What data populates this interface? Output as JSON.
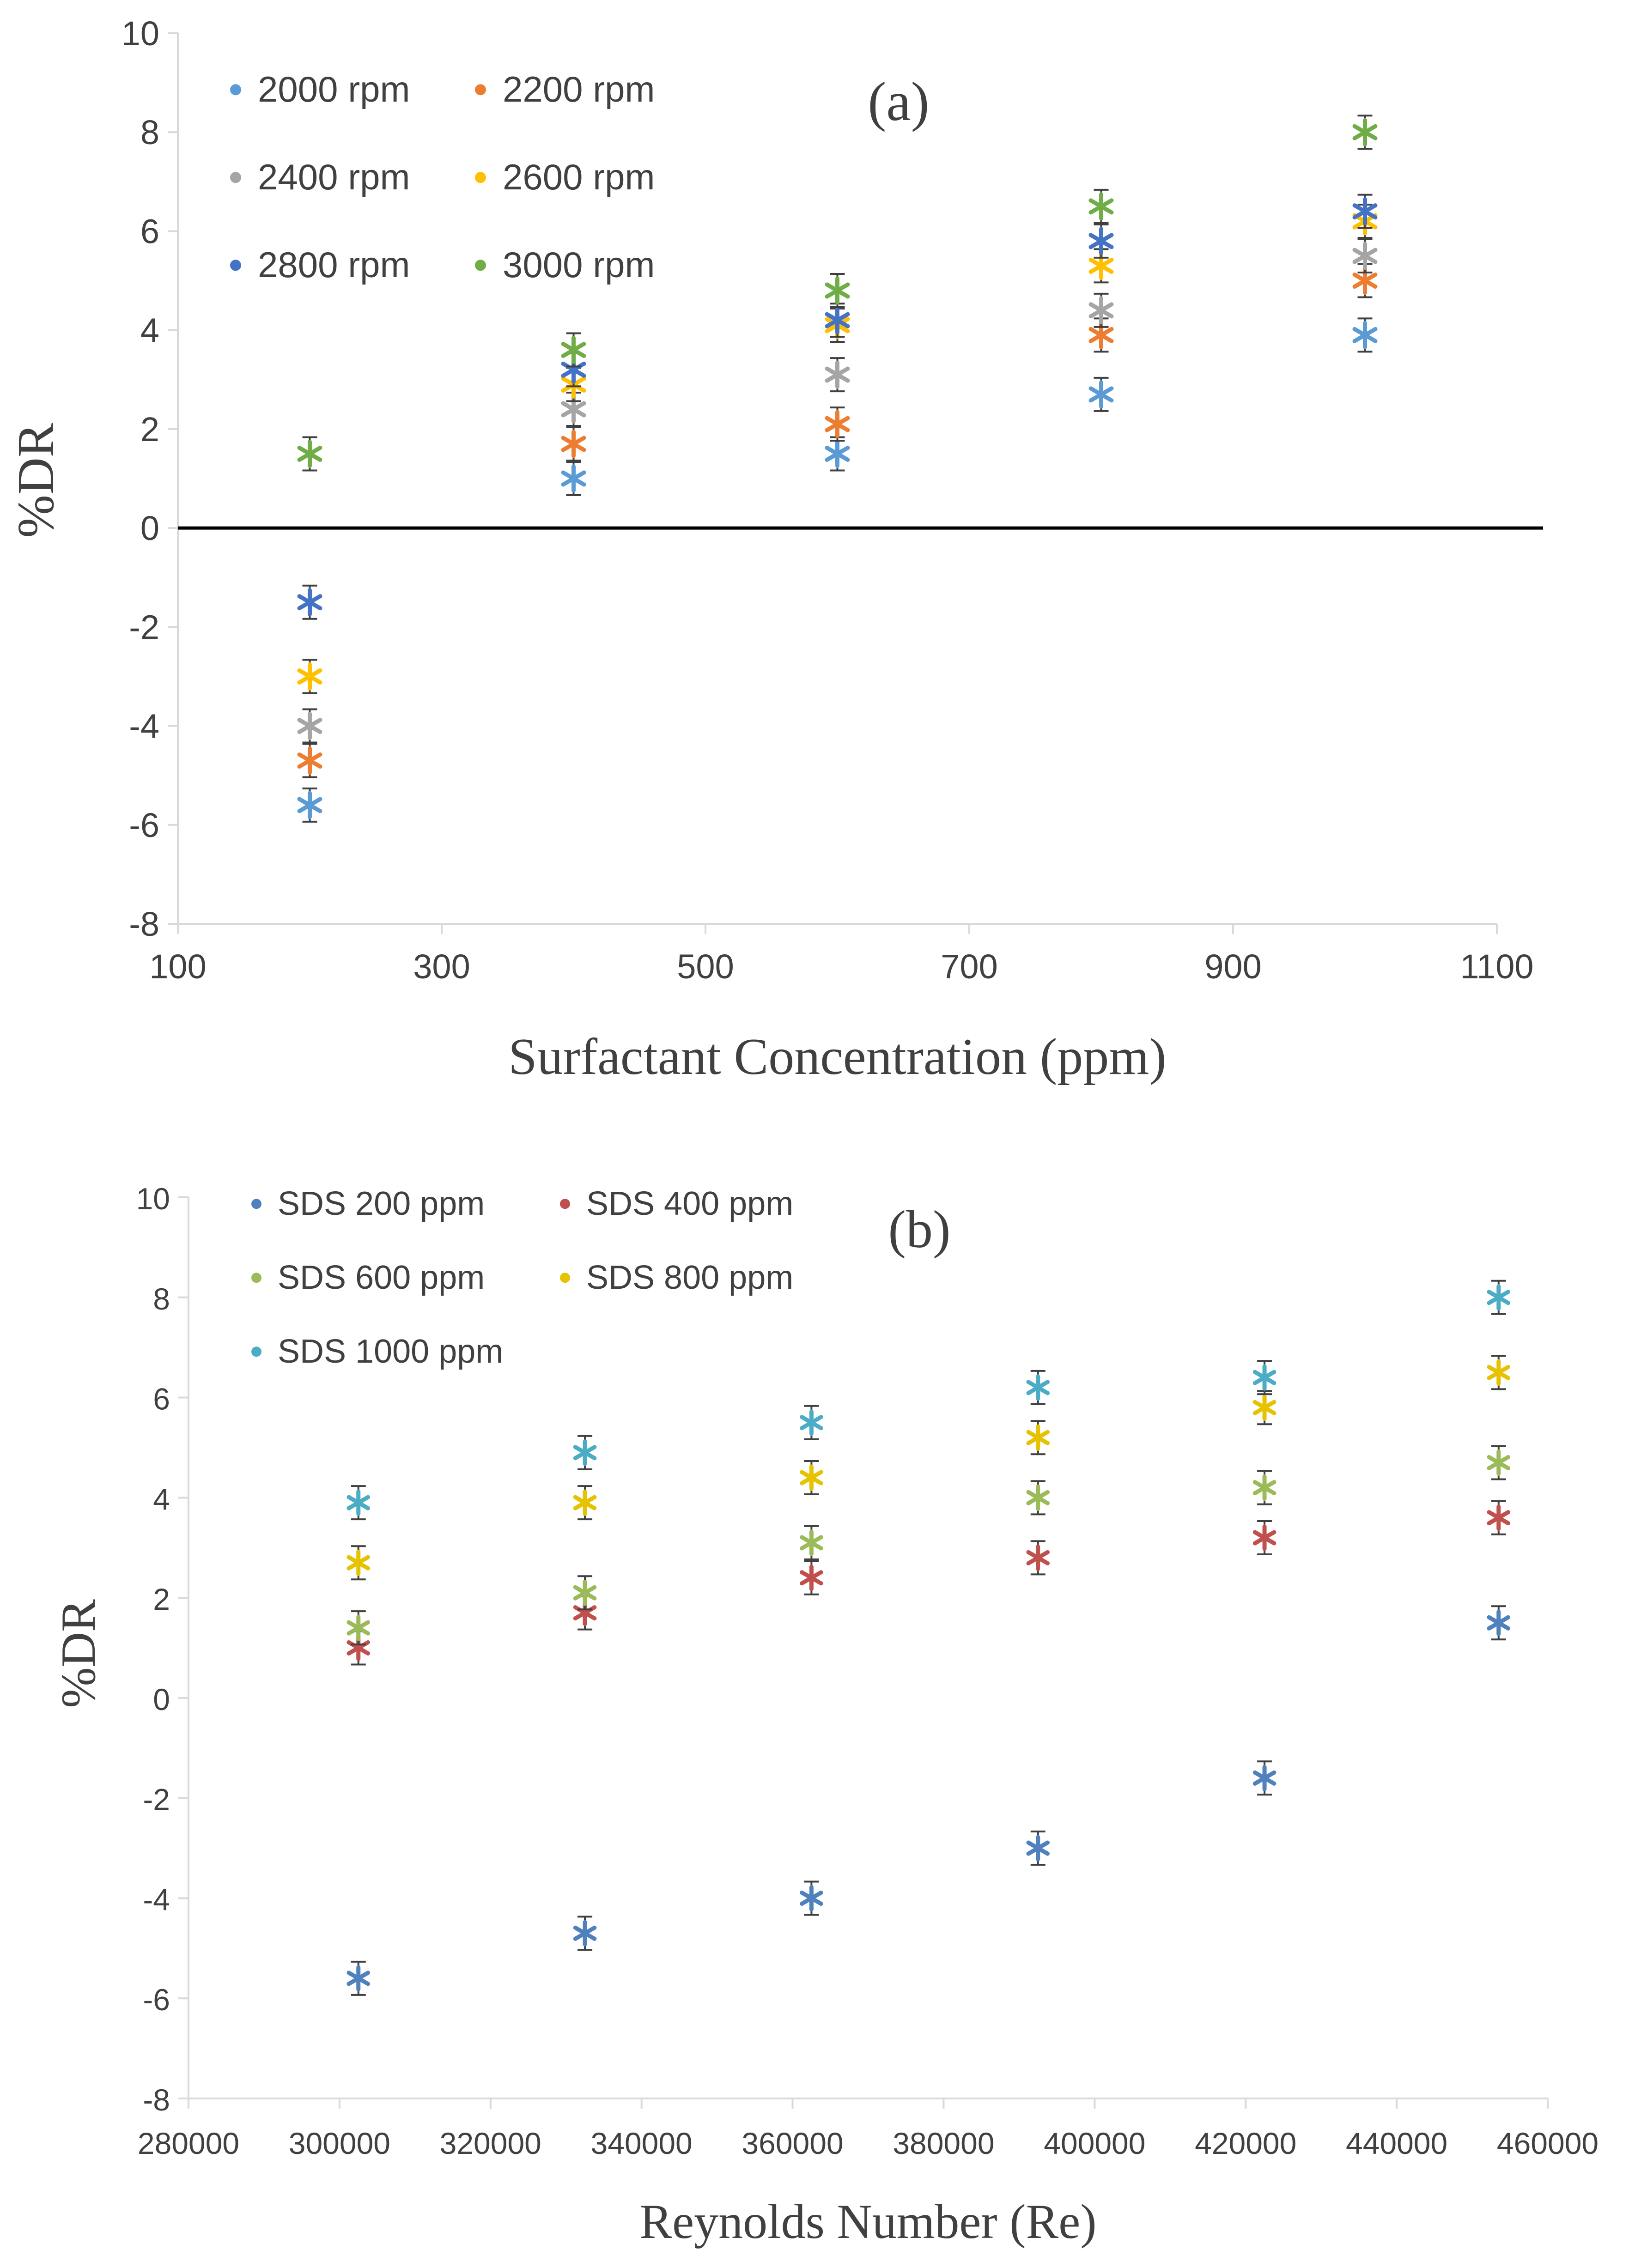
{
  "chart_data": [
    {
      "type": "scatter",
      "panel_label": "(a)",
      "xlabel": "Surfactant Concentration (ppm)",
      "ylabel": "%DR",
      "xlim": [
        100,
        1100
      ],
      "ylim": [
        -8,
        10
      ],
      "xticks": [
        "100",
        "300",
        "500",
        "700",
        "900",
        "1100"
      ],
      "yticks": [
        "-8",
        "-6",
        "-4",
        "-2",
        "0",
        "2",
        "4",
        "6",
        "8",
        "10"
      ],
      "x": [
        200,
        400,
        600,
        800,
        1000
      ],
      "zero_line": true,
      "error_bars": true,
      "legend_placement": "top-left",
      "series": [
        {
          "name": "2000 rpm",
          "color": "#5B9BD5",
          "values": [
            -5.6,
            1.0,
            1.5,
            2.7,
            3.9
          ]
        },
        {
          "name": "2200 rpm",
          "color": "#ED7D31",
          "values": [
            -4.7,
            1.7,
            2.1,
            3.9,
            5.0
          ]
        },
        {
          "name": "2400 rpm",
          "color": "#A5A5A5",
          "values": [
            -4.0,
            2.4,
            3.1,
            4.4,
            5.5
          ]
        },
        {
          "name": "2600 rpm",
          "color": "#FFC000",
          "values": [
            -3.0,
            2.9,
            4.1,
            5.3,
            6.2
          ]
        },
        {
          "name": "2800 rpm",
          "color": "#4472C4",
          "values": [
            -1.5,
            3.2,
            4.2,
            5.8,
            6.4
          ]
        },
        {
          "name": "3000 rpm",
          "color": "#70AD47",
          "values": [
            1.5,
            3.6,
            4.8,
            6.5,
            8.0
          ]
        }
      ]
    },
    {
      "type": "scatter",
      "panel_label": "(b)",
      "xlabel": "Reynolds  Number  (Re)",
      "ylabel": "%DR",
      "xlim": [
        280000,
        460000
      ],
      "ylim": [
        -8,
        10
      ],
      "xticks": [
        "280000",
        "300000",
        "320000",
        "340000",
        "360000",
        "380000",
        "400000",
        "420000",
        "440000",
        "460000"
      ],
      "yticks": [
        "-8",
        "-6",
        "-4",
        "-2",
        "0",
        "2",
        "4",
        "6",
        "8",
        "10"
      ],
      "x": [
        302500,
        332500,
        362500,
        392500,
        422500,
        453500
      ],
      "error_bars": true,
      "legend_placement": "top-left",
      "series": [
        {
          "name": "SDS 200 ppm",
          "color": "#4F81BD",
          "values": [
            -5.6,
            -4.7,
            -4.0,
            -3.0,
            -1.6,
            1.5
          ]
        },
        {
          "name": "SDS 400 ppm",
          "color": "#C0504D",
          "values": [
            1.0,
            1.7,
            2.4,
            2.8,
            3.2,
            3.6
          ]
        },
        {
          "name": "SDS 600 ppm",
          "color": "#9BBB59",
          "values": [
            1.4,
            2.1,
            3.1,
            4.0,
            4.2,
            4.7
          ]
        },
        {
          "name": "SDS 800 ppm",
          "color": "#E6C200",
          "values": [
            2.7,
            3.9,
            4.4,
            5.2,
            5.8,
            6.5
          ]
        },
        {
          "name": "SDS 1000 ppm",
          "color": "#4BACC6",
          "values": [
            3.9,
            4.9,
            5.5,
            6.2,
            6.4,
            8.0
          ]
        }
      ]
    }
  ]
}
